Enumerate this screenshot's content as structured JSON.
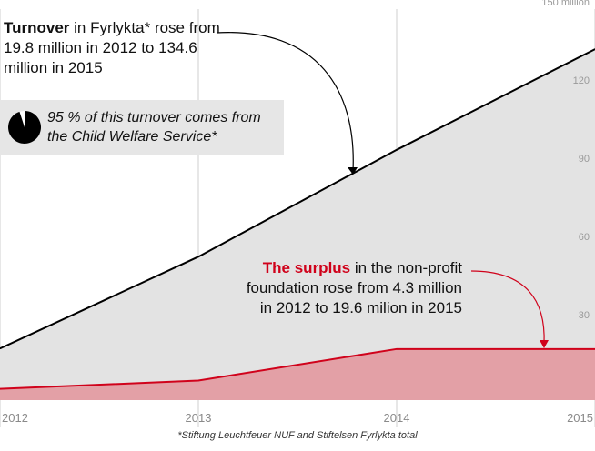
{
  "chart_data": {
    "type": "area",
    "x": [
      "2012",
      "2013",
      "2014",
      "2015"
    ],
    "series": [
      {
        "values": [
          19.8,
          55,
          96,
          134.6
        ],
        "color": "#e3e3e3",
        "line_color": "#000000"
      },
      {
        "values": [
          4.3,
          7.5,
          19.6,
          19.6
        ],
        "color": "#e3a0a6",
        "line_color": "#d0021b"
      }
    ],
    "y_ticks": [
      {
        "value": 30,
        "label": "30"
      },
      {
        "value": 60,
        "label": "60"
      },
      {
        "value": 90,
        "label": "90"
      },
      {
        "value": 120,
        "label": "120"
      },
      {
        "value": 150,
        "label": "150 million"
      }
    ],
    "ylim": [
      0,
      150
    ],
    "grid": true
  },
  "annotations": {
    "turnover_bold": "Turnover",
    "turnover_rest": " in Fyrlykta* rose from 19.8 million in 2012 to 134.6 million in 2015",
    "pie_text": "95 % of this turnover comes from the Child Welfare Service*",
    "pie_share": 0.95,
    "surplus_bold": "The surplus",
    "surplus_rest": " in the non-profit foundation rose from 4.3 million in 2012 to 19.6 milion in 2015"
  },
  "footnote": "*Stiftung Leuchtfeuer NUF and Stiftelsen Fyrlykta total"
}
